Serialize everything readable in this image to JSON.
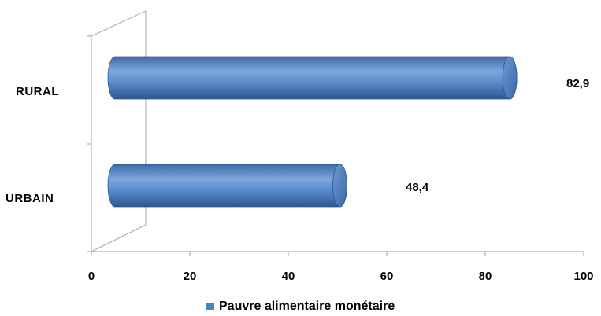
{
  "chart_data": {
    "type": "bar",
    "orientation": "horizontal",
    "categories": [
      "RURAL",
      "URBAIN"
    ],
    "series": [
      {
        "name": "Pauvre alimentaire monétaire",
        "values": [
          82.9,
          48.4
        ]
      }
    ],
    "data_labels": [
      "82,9",
      "48,4"
    ],
    "xlim": [
      0,
      100
    ],
    "xticks": [
      0,
      20,
      40,
      60,
      80,
      100
    ],
    "grid": false,
    "legend": "bottom",
    "bar_style": "3d-cylinder",
    "colors": {
      "bar": "#4F81BD",
      "bar_light": "#7EA7DE",
      "bar_dark": "#3461A0",
      "axis": "#b0b0b0"
    }
  },
  "legend": {
    "label": "Pauvre alimentaire monétaire"
  }
}
